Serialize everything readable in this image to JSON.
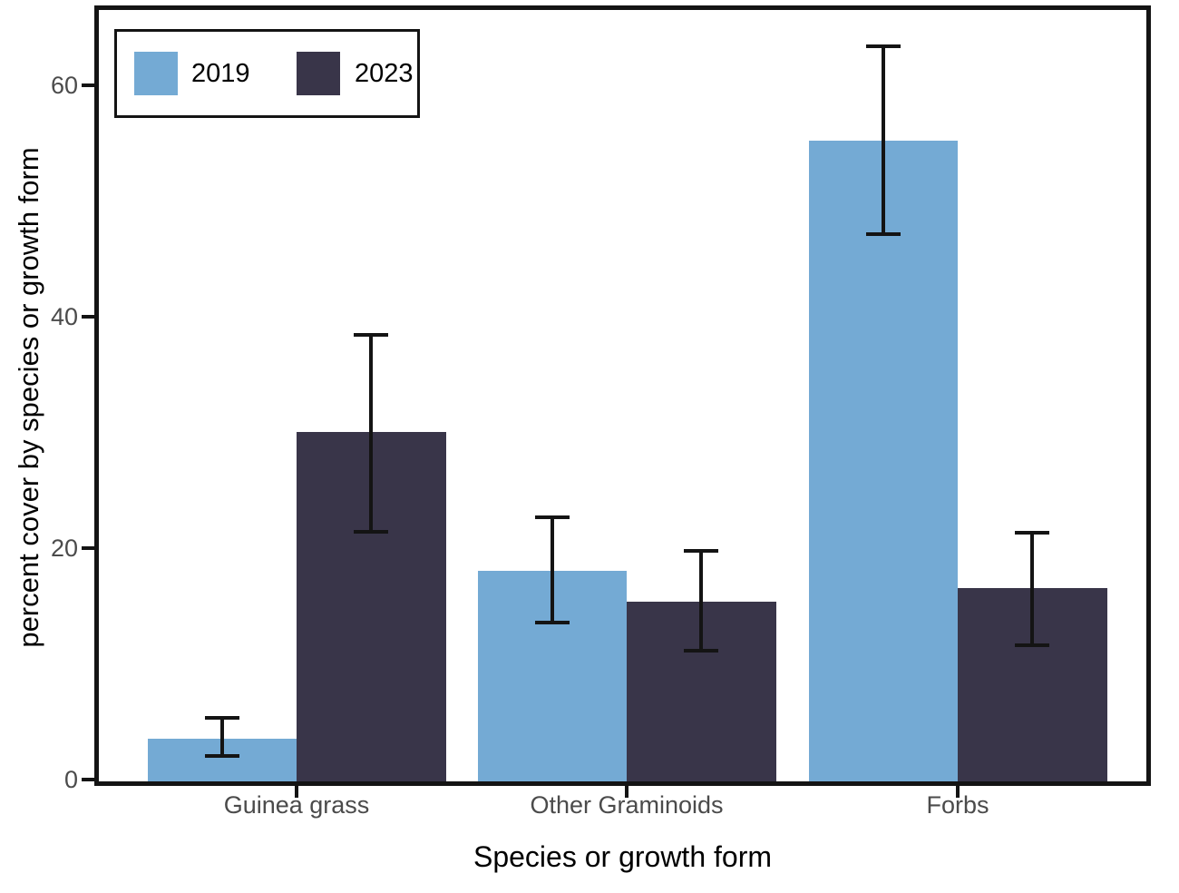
{
  "figure": {
    "background_color": "#ffffff",
    "axis_line_color": "#141414",
    "tick_label_color": "#4b4b4b",
    "axis_title_color": "#000000"
  },
  "chart_data": {
    "type": "bar",
    "title": "",
    "categories": [
      "Guinea grass",
      "Other Graminoids",
      "Forbs"
    ],
    "series": [
      {
        "name": "2019",
        "color": "#74aad4",
        "values": [
          3.5,
          18.0,
          55.2
        ],
        "err_low": [
          2.0,
          13.5,
          47.1
        ],
        "err_high": [
          5.3,
          22.6,
          63.3
        ]
      },
      {
        "name": "2023",
        "color": "#393549",
        "values": [
          30.0,
          15.3,
          16.5
        ],
        "err_low": [
          21.4,
          11.1,
          11.6
        ],
        "err_high": [
          38.4,
          19.7,
          21.3
        ]
      }
    ],
    "xlabel": "Species or growth form",
    "ylabel": "percent cover by species or growth form",
    "yticks": [
      0,
      20,
      40,
      60
    ],
    "ytick_labels": [
      "0",
      "20",
      "40",
      "60"
    ],
    "ylim": [
      0,
      66.5
    ],
    "grid": "off",
    "error_bars": true,
    "legend_position": "top-left-inside",
    "legend_items": [
      "2019",
      "2023"
    ]
  }
}
